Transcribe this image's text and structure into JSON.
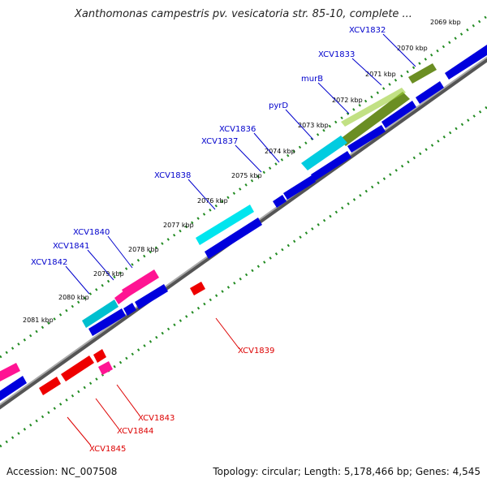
{
  "title": "Xanthomonas campestris pv. vesicatoria str. 85-10, complete ...",
  "footer": {
    "accession": "Accession: NC_007508",
    "summary": "Topology: circular; Length: 5,178,466 bp; Genes: 4,545"
  },
  "colors": {
    "backbone": "#808080",
    "ruler_dots": "#228B22",
    "forward_label": "#0000CC",
    "reverse_label": "#DD0000",
    "cds_blue": "#0000DD",
    "cds_red": "#EE0000",
    "gene_cyan": "#00DDEE",
    "gene_olive": "#6B8E23",
    "gene_pink": "#FF1493"
  },
  "ruler": {
    "unit": "kbp",
    "ticks": [
      "2069 kbp",
      "2070 kbp",
      "2071 kbp",
      "2072 kbp",
      "2073 kbp",
      "2074 kbp",
      "2075 kbp",
      "2076 kbp",
      "2077 kbp",
      "2078 kbp",
      "2079 kbp",
      "2080 kbp",
      "2081 kbp"
    ]
  },
  "gene_labels_forward": [
    "XCV1832",
    "XCV1833",
    "murB",
    "pyrD",
    "XCV1836",
    "XCV1837",
    "XCV1838",
    "XCV1840",
    "XCV1841",
    "XCV1842"
  ],
  "gene_labels_reverse": [
    "XCV1839",
    "XCV1843",
    "XCV1844",
    "XCV1845"
  ]
}
